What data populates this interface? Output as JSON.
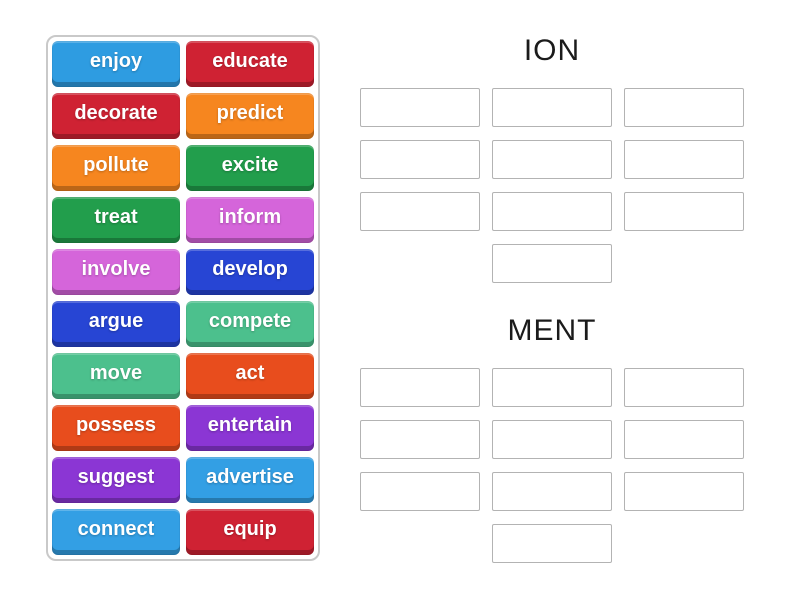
{
  "word_bank": {
    "tiles": [
      {
        "label": "enjoy",
        "color": "#2e9ce1"
      },
      {
        "label": "educate",
        "color": "#cf2233"
      },
      {
        "label": "decorate",
        "color": "#cf2233"
      },
      {
        "label": "predict",
        "color": "#f6861f"
      },
      {
        "label": "pollute",
        "color": "#f6861f"
      },
      {
        "label": "excite",
        "color": "#229e4c"
      },
      {
        "label": "treat",
        "color": "#229e4c"
      },
      {
        "label": "inform",
        "color": "#d565da"
      },
      {
        "label": "involve",
        "color": "#d565da"
      },
      {
        "label": "develop",
        "color": "#2745d4"
      },
      {
        "label": "argue",
        "color": "#2745d4"
      },
      {
        "label": "compete",
        "color": "#4cc08d"
      },
      {
        "label": "move",
        "color": "#4cc08d"
      },
      {
        "label": "act",
        "color": "#e84d1d"
      },
      {
        "label": "possess",
        "color": "#e84d1d"
      },
      {
        "label": "entertain",
        "color": "#8b36d4"
      },
      {
        "label": "suggest",
        "color": "#8b36d4"
      },
      {
        "label": "advertise",
        "color": "#339fe4"
      },
      {
        "label": "connect",
        "color": "#339fe4"
      },
      {
        "label": "equip",
        "color": "#cf2233"
      }
    ]
  },
  "groups": [
    {
      "title": "ION",
      "slots": 10
    },
    {
      "title": "MENT",
      "slots": 10
    }
  ],
  "ui_colors": {
    "panel_border": "#c9c9c9",
    "slot_border": "#b3b3b3",
    "title_text": "#1b1b1b",
    "tile_text": "#ffffff"
  }
}
